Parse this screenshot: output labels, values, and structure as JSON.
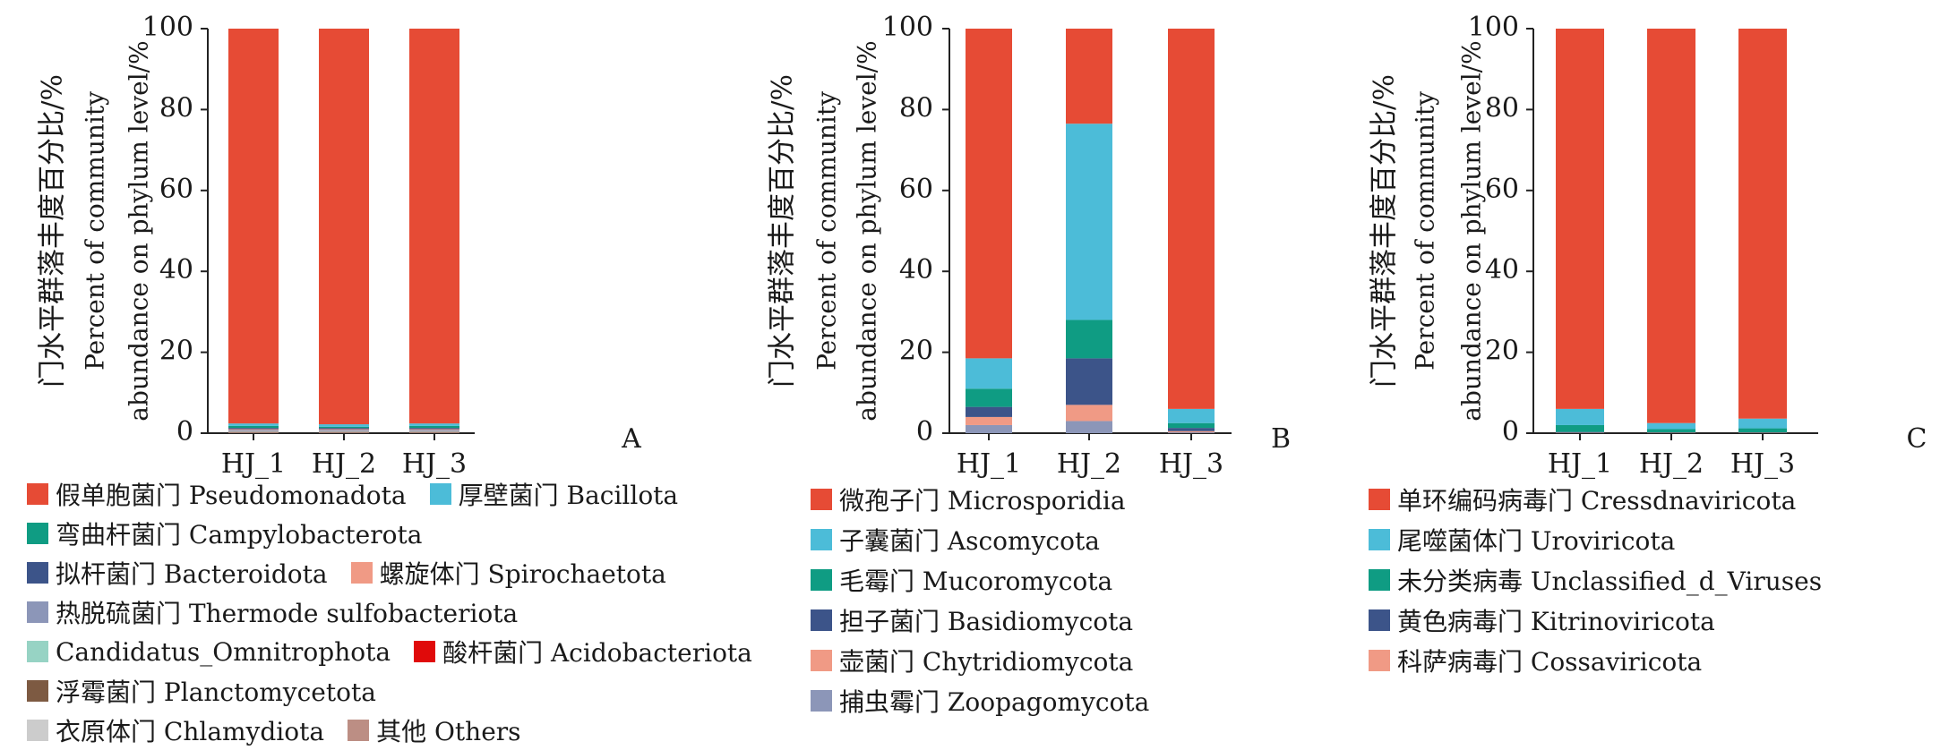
{
  "chart_data": [
    {
      "type": "bar",
      "stacked": true,
      "panel_label": "A",
      "ylabel": [
        "门水平群落丰度百分比/%",
        "Percent of community",
        "abundance on phylum level/%"
      ],
      "ylim": [
        0,
        100
      ],
      "yticks": [
        0,
        20,
        40,
        60,
        80,
        100
      ],
      "categories": [
        "HJ_1",
        "HJ_2",
        "HJ_3"
      ],
      "series": [
        {
          "name": "衣原体门 Chlamydiota",
          "color": "#cccccc",
          "values": [
            0.1,
            0.1,
            0.1
          ]
        },
        {
          "name": "浮霉菌门 Planctomycetota",
          "color": "#7d5a42",
          "values": [
            0.1,
            0.1,
            0.1
          ]
        },
        {
          "name": "酸杆菌门 Acidobacteriota",
          "color": "#e00a0a",
          "values": [
            0.1,
            0.1,
            0.1
          ]
        },
        {
          "name": "Candidatus_Omnitrophota",
          "color": "#97d3c4",
          "values": [
            0.2,
            0.2,
            0.2
          ]
        },
        {
          "name": "热脱硫菌门 Thermode sulfobacteriota",
          "color": "#8c96b8",
          "values": [
            0.3,
            0.3,
            0.3
          ]
        },
        {
          "name": "螺旋体门 Spirochaetota",
          "color": "#f09a85",
          "values": [
            0.2,
            0.2,
            0.2
          ]
        },
        {
          "name": "拟杆菌门 Bacteroidota",
          "color": "#3c5489",
          "values": [
            0.3,
            0.3,
            0.3
          ]
        },
        {
          "name": "弯曲杆菌门 Campylobacterota",
          "color": "#0f9c83",
          "values": [
            0.5,
            0.3,
            0.5
          ]
        },
        {
          "name": "厚壁菌门 Bacillota",
          "color": "#4cbcd8",
          "values": [
            0.6,
            0.6,
            0.6
          ]
        },
        {
          "name": "假单胞菌门 Pseudomonadota",
          "color": "#e64b35",
          "values": [
            97.6,
            97.8,
            97.6
          ]
        }
      ]
    },
    {
      "type": "bar",
      "stacked": true,
      "panel_label": "B",
      "ylabel": [
        "门水平群落丰度百分比/%",
        "Percent of community",
        "abundance on phylum level/%"
      ],
      "ylim": [
        0,
        100
      ],
      "yticks": [
        0,
        20,
        40,
        60,
        80,
        100
      ],
      "categories": [
        "HJ_1",
        "HJ_2",
        "HJ_3"
      ],
      "series": [
        {
          "name": "捕虫霉门 Zoopagomycota",
          "color": "#8c96b8",
          "values": [
            2,
            3,
            0.2
          ]
        },
        {
          "name": "壶菌门 Chytridiomycota",
          "color": "#f09a85",
          "values": [
            2,
            4,
            0.3
          ]
        },
        {
          "name": "担子菌门 Basidiomycota",
          "color": "#3c5489",
          "values": [
            2.5,
            11.5,
            0.8
          ]
        },
        {
          "name": "毛霉门 Mucoromycota",
          "color": "#0f9c83",
          "values": [
            4.5,
            9.5,
            1.2
          ]
        },
        {
          "name": "子囊菌门 Ascomycota",
          "color": "#4cbcd8",
          "values": [
            7.5,
            48.5,
            3.5
          ]
        },
        {
          "name": "微孢子门 Microsporidia",
          "color": "#e64b35",
          "values": [
            81.5,
            23.5,
            94
          ]
        }
      ]
    },
    {
      "type": "bar",
      "stacked": true,
      "panel_label": "C",
      "ylabel": [
        "门水平群落丰度百分比/%",
        "Percent of community",
        "abundance on phylum level/%"
      ],
      "ylim": [
        0,
        100
      ],
      "yticks": [
        0,
        20,
        40,
        60,
        80,
        100
      ],
      "categories": [
        "HJ_1",
        "HJ_2",
        "HJ_3"
      ],
      "series": [
        {
          "name": "科萨病毒门 Cossaviricota",
          "color": "#f09a85",
          "values": [
            0.1,
            0.1,
            0.1
          ]
        },
        {
          "name": "黄色病毒门 Kitrinoviricota",
          "color": "#3c5489",
          "values": [
            0.2,
            0.1,
            0.1
          ]
        },
        {
          "name": "未分类病毒 Unclassified_d_Viruses",
          "color": "#0f9c83",
          "values": [
            1.7,
            0.8,
            1.0
          ]
        },
        {
          "name": "尾噬菌体门 Uroviricota",
          "color": "#4cbcd8",
          "values": [
            4.0,
            1.5,
            2.4
          ]
        },
        {
          "name": "单环编码病毒门 Cressdnaviricota",
          "color": "#e64b35",
          "values": [
            94.0,
            97.5,
            96.4
          ]
        }
      ]
    }
  ],
  "legends": [
    {
      "rows": [
        [
          {
            "label": "假单胞菌门 Pseudomonadota",
            "color": "#e64b35"
          },
          {
            "label": "厚壁菌门 Bacillota",
            "color": "#4cbcd8"
          }
        ],
        [
          {
            "label": "弯曲杆菌门 Campylobacterota",
            "color": "#0f9c83"
          }
        ],
        [
          {
            "label": "拟杆菌门 Bacteroidota",
            "color": "#3c5489"
          },
          {
            "label": "螺旋体门 Spirochaetota",
            "color": "#f09a85"
          }
        ],
        [
          {
            "label": "热脱硫菌门 Thermode  sulfobacteriota",
            "color": "#8c96b8"
          }
        ],
        [
          {
            "label": "Candidatus_Omnitrophota",
            "color": "#97d3c4"
          },
          {
            "label": "酸杆菌门 Acidobacteriota",
            "color": "#e00a0a"
          }
        ],
        [
          {
            "label": "浮霉菌门 Planctomycetota",
            "color": "#7d5a42"
          }
        ],
        [
          {
            "label": "衣原体门 Chlamydiota",
            "color": "#cccccc"
          },
          {
            "label": "其他 Others",
            "color": "#bc8e84"
          }
        ]
      ]
    },
    {
      "rows": [
        [
          {
            "label": "微孢子门 Microsporidia",
            "color": "#e64b35"
          }
        ],
        [
          {
            "label": "子囊菌门 Ascomycota",
            "color": "#4cbcd8"
          }
        ],
        [
          {
            "label": "毛霉门 Mucoromycota",
            "color": "#0f9c83"
          }
        ],
        [
          {
            "label": "担子菌门 Basidiomycota",
            "color": "#3c5489"
          }
        ],
        [
          {
            "label": "壶菌门 Chytridiomycota",
            "color": "#f09a85"
          }
        ],
        [
          {
            "label": "捕虫霉门 Zoopagomycota",
            "color": "#8c96b8"
          }
        ]
      ]
    },
    {
      "rows": [
        [
          {
            "label": "单环编码病毒门 Cressdnaviricota",
            "color": "#e64b35"
          }
        ],
        [
          {
            "label": "尾噬菌体门 Uroviricota",
            "color": "#4cbcd8"
          }
        ],
        [
          {
            "label": "未分类病毒 Unclassified_d_Viruses",
            "color": "#0f9c83"
          }
        ],
        [
          {
            "label": "黄色病毒门 Kitrinoviricota",
            "color": "#3c5489"
          }
        ],
        [
          {
            "label": "科萨病毒门 Cossaviricota",
            "color": "#f09a85"
          }
        ]
      ]
    }
  ]
}
